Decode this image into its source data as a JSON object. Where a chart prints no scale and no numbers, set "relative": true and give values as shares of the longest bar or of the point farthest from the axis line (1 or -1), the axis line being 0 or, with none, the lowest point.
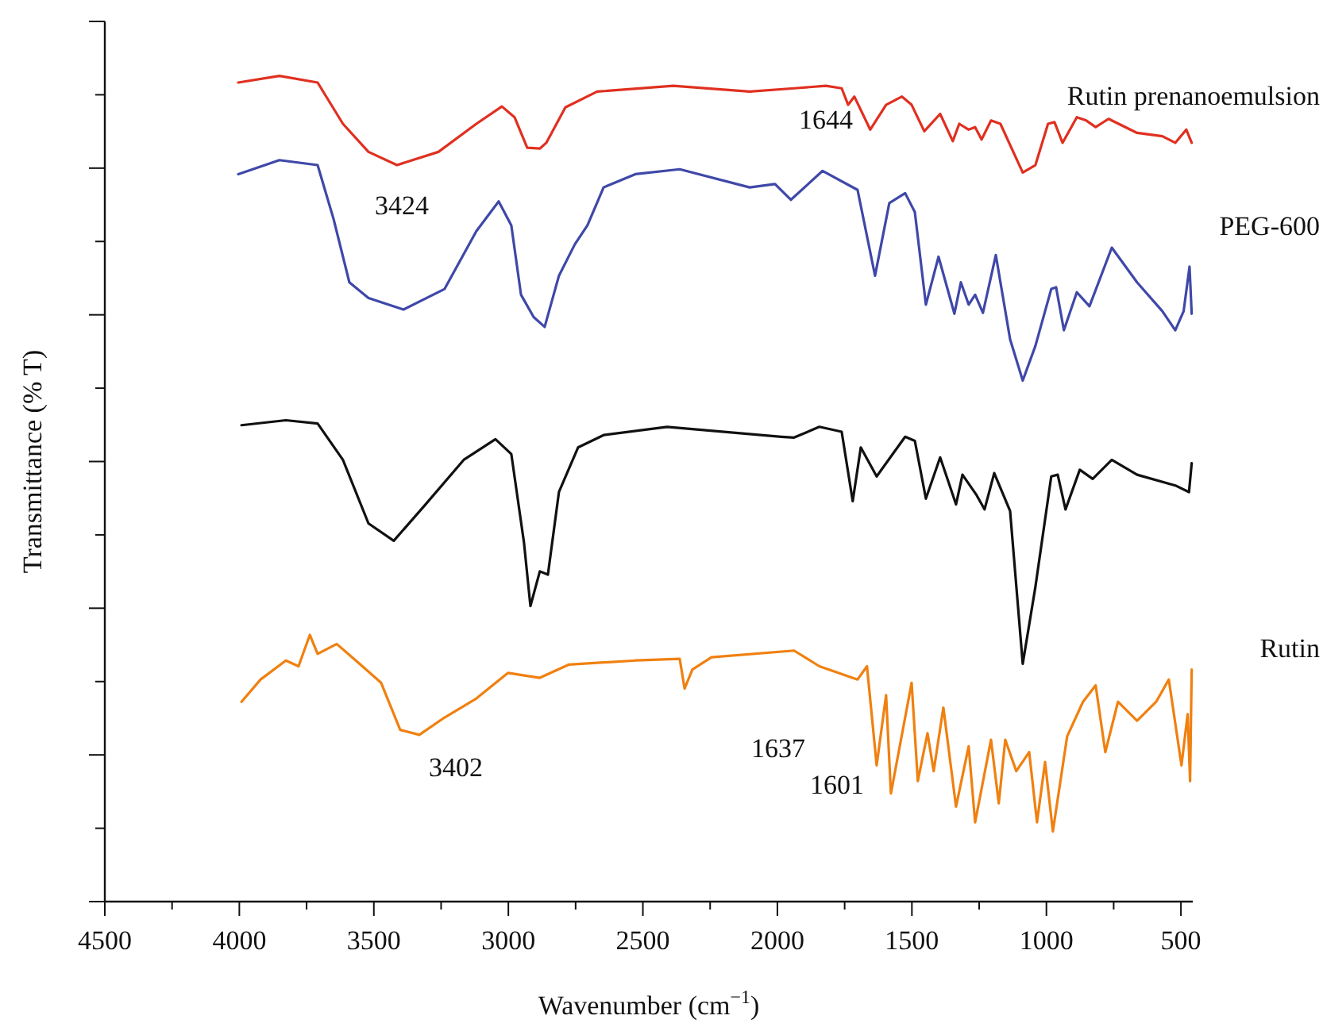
{
  "chart_data": {
    "type": "line",
    "relative": true,
    "xlabel": "Wavenumber (cm$^{−1}$)",
    "ylabel": "Transmittance (% T)",
    "xlim": [
      4500,
      456
    ],
    "xticks": [
      4500,
      4000,
      3500,
      3000,
      2500,
      2000,
      1500,
      1000,
      500
    ],
    "annotations": [
      "3424",
      "1644",
      "3402",
      "1637",
      "1601"
    ],
    "series": [
      {
        "name": "Rutin prenanoemulsion",
        "color": "#e03020",
        "x": [
          4004,
          3851,
          3709,
          3615,
          3520,
          3414,
          3260,
          3119,
          3024,
          2977,
          2930,
          2883,
          2859,
          2788,
          2670,
          2387,
          2103,
          1938,
          1820,
          1761,
          1737,
          1714,
          1655,
          1596,
          1537,
          1501,
          1454,
          1395,
          1348,
          1324,
          1289,
          1265,
          1241,
          1206,
          1171,
          1088,
          1041,
          994,
          970,
          940,
          887,
          852,
          817,
          769,
          663,
          569,
          521,
          480,
          460
        ],
        "values": [
          0.992,
          1,
          0.992,
          0.942,
          0.908,
          0.892,
          0.908,
          0.942,
          0.963,
          0.95,
          0.913,
          0.912,
          0.919,
          0.962,
          0.981,
          0.988,
          0.981,
          0.985,
          0.988,
          0.985,
          0.965,
          0.975,
          0.935,
          0.965,
          0.975,
          0.965,
          0.933,
          0.954,
          0.921,
          0.942,
          0.935,
          0.938,
          0.923,
          0.946,
          0.942,
          0.883,
          0.892,
          0.942,
          0.944,
          0.919,
          0.95,
          0.946,
          0.938,
          0.948,
          0.931,
          0.927,
          0.919,
          0.935,
          0.919
        ]
      },
      {
        "name": "PEG-600",
        "color": "#3f48a8",
        "x": [
          4004,
          3851,
          3709,
          3650,
          3591,
          3520,
          3390,
          3237,
          3119,
          3036,
          2989,
          2953,
          2906,
          2865,
          2812,
          2753,
          2706,
          2646,
          2528,
          2363,
          2103,
          2009,
          1950,
          1832,
          1702,
          1637,
          1584,
          1525,
          1489,
          1448,
          1401,
          1342,
          1318,
          1289,
          1265,
          1236,
          1188,
          1135,
          1088,
          1041,
          982,
          964,
          935,
          887,
          840,
          757,
          663,
          569,
          521,
          490,
          468,
          460
        ],
        "values": [
          0.881,
          0.898,
          0.892,
          0.827,
          0.75,
          0.731,
          0.717,
          0.742,
          0.812,
          0.848,
          0.819,
          0.735,
          0.708,
          0.696,
          0.758,
          0.796,
          0.819,
          0.865,
          0.881,
          0.887,
          0.865,
          0.869,
          0.85,
          0.885,
          0.862,
          0.758,
          0.846,
          0.858,
          0.835,
          0.723,
          0.781,
          0.712,
          0.75,
          0.723,
          0.735,
          0.713,
          0.783,
          0.681,
          0.631,
          0.673,
          0.742,
          0.744,
          0.692,
          0.738,
          0.721,
          0.792,
          0.75,
          0.715,
          0.692,
          0.715,
          0.769,
          0.712
        ]
      },
      {
        "color": "#111111",
        "x": [
          3992,
          3827,
          3709,
          3615,
          3520,
          3426,
          3308,
          3166,
          3048,
          2989,
          2942,
          2918,
          2883,
          2853,
          2812,
          2741,
          2646,
          2410,
          1985,
          1938,
          1844,
          1761,
          1720,
          1690,
          1631,
          1525,
          1489,
          1448,
          1395,
          1336,
          1312,
          1259,
          1230,
          1194,
          1135,
          1088,
          1041,
          982,
          958,
          929,
          876,
          828,
          757,
          663,
          521,
          470,
          460
        ],
        "values": [
          0.577,
          0.583,
          0.579,
          0.535,
          0.458,
          0.437,
          0.481,
          0.535,
          0.56,
          0.542,
          0.435,
          0.358,
          0.4,
          0.396,
          0.496,
          0.55,
          0.565,
          0.575,
          0.563,
          0.562,
          0.575,
          0.569,
          0.485,
          0.55,
          0.515,
          0.563,
          0.558,
          0.488,
          0.538,
          0.481,
          0.517,
          0.492,
          0.475,
          0.519,
          0.473,
          0.288,
          0.381,
          0.515,
          0.517,
          0.475,
          0.523,
          0.512,
          0.535,
          0.517,
          0.504,
          0.496,
          0.531
        ]
      },
      {
        "name": "Rutin",
        "color": "#f08010",
        "x": [
          3992,
          3921,
          3827,
          3780,
          3738,
          3709,
          3638,
          3567,
          3473,
          3402,
          3331,
          3237,
          3119,
          3001,
          2883,
          2776,
          2528,
          2363,
          2345,
          2316,
          2245,
          1938,
          1844,
          1702,
          1667,
          1631,
          1596,
          1578,
          1501,
          1478,
          1442,
          1419,
          1383,
          1336,
          1289,
          1265,
          1206,
          1177,
          1153,
          1112,
          1064,
          1035,
          1005,
          976,
          923,
          864,
          817,
          781,
          734,
          663,
          592,
          545,
          498,
          475,
          466,
          460
        ],
        "values": [
          0.242,
          0.269,
          0.292,
          0.285,
          0.323,
          0.3,
          0.312,
          0.292,
          0.265,
          0.208,
          0.202,
          0.223,
          0.246,
          0.277,
          0.271,
          0.287,
          0.292,
          0.294,
          0.258,
          0.281,
          0.296,
          0.304,
          0.285,
          0.269,
          0.285,
          0.165,
          0.25,
          0.131,
          0.265,
          0.146,
          0.204,
          0.158,
          0.235,
          0.115,
          0.188,
          0.096,
          0.196,
          0.119,
          0.196,
          0.158,
          0.181,
          0.096,
          0.169,
          0.085,
          0.2,
          0.242,
          0.262,
          0.181,
          0.242,
          0.219,
          0.242,
          0.269,
          0.165,
          0.227,
          0.146,
          0.281
        ]
      }
    ]
  }
}
